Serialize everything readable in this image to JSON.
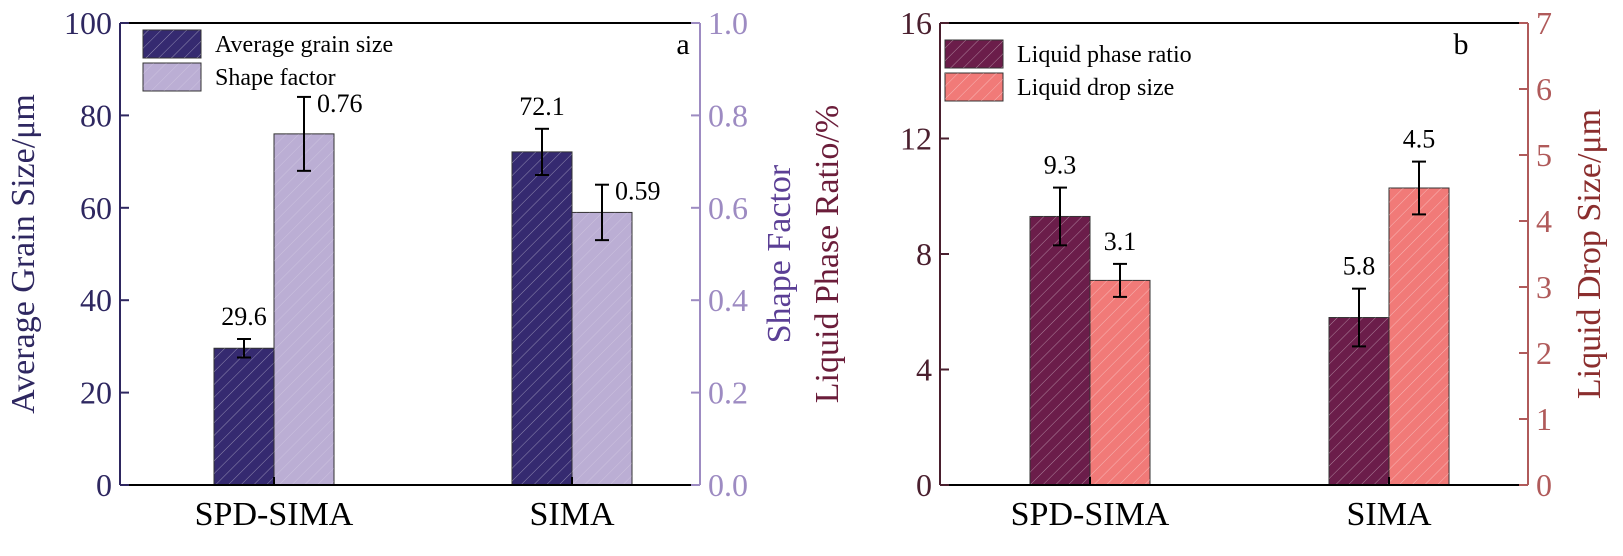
{
  "chart_data": [
    {
      "panel": "a",
      "type": "bar",
      "categories": [
        "SPD-SIMA",
        "SIMA"
      ],
      "series": [
        {
          "name": "Average grain size",
          "axis": "left",
          "values": [
            29.6,
            72.1
          ],
          "errors": [
            2.0,
            5.0
          ],
          "labels": [
            "29.6",
            "72.1"
          ],
          "color": "#352a70",
          "hatched": true
        },
        {
          "name": "Shape factor",
          "axis": "right",
          "values": [
            0.76,
            0.59
          ],
          "errors": [
            0.08,
            0.06
          ],
          "labels": [
            "0.76",
            "0.59"
          ],
          "color": "#bbaed4",
          "hatched": false
        }
      ],
      "left_axis": {
        "label": "Average Grain Size/μm",
        "ylim": [
          0,
          100
        ],
        "ticks": [
          "0",
          "20",
          "40",
          "60",
          "80",
          "100"
        ],
        "color": "#2e2760",
        "label_color": "#2e2760"
      },
      "right_axis": {
        "label": "Shape Factor",
        "ylim": [
          0,
          1.0
        ],
        "ticks": [
          "0.0",
          "0.2",
          "0.4",
          "0.6",
          "0.8",
          "1.0"
        ],
        "color": "#9d8bc2",
        "label_color": "#5b3f95"
      },
      "legend_placement": "top-left",
      "grid": false
    },
    {
      "panel": "b",
      "type": "bar",
      "categories": [
        "SPD-SIMA",
        "SIMA"
      ],
      "series": [
        {
          "name": "Liquid phase ratio",
          "axis": "left",
          "values": [
            9.3,
            5.8
          ],
          "errors": [
            1.0,
            1.0
          ],
          "labels": [
            "9.3",
            "5.8"
          ],
          "color": "#6b1d4a",
          "hatched": true
        },
        {
          "name": "Liquid drop size",
          "axis": "right",
          "values": [
            3.1,
            4.5
          ],
          "errors": [
            0.25,
            0.4
          ],
          "labels": [
            "3.1",
            "4.5"
          ],
          "color": "#f17a78",
          "hatched": true
        }
      ],
      "left_axis": {
        "label": "Liquid Phase Ratio/%",
        "ylim": [
          0,
          16
        ],
        "ticks": [
          "0",
          "4",
          "8",
          "12",
          "16"
        ],
        "color": "#4a1f2e",
        "label_color": "#6b1d3a"
      },
      "right_axis": {
        "label": "Liquid Drop Size/μm",
        "ylim": [
          0,
          7
        ],
        "ticks": [
          "0",
          "1",
          "2",
          "3",
          "4",
          "5",
          "6",
          "7"
        ],
        "color": "#b05a5a",
        "label_color": "#8b2e2e"
      },
      "legend_placement": "top-left",
      "grid": false
    }
  ]
}
